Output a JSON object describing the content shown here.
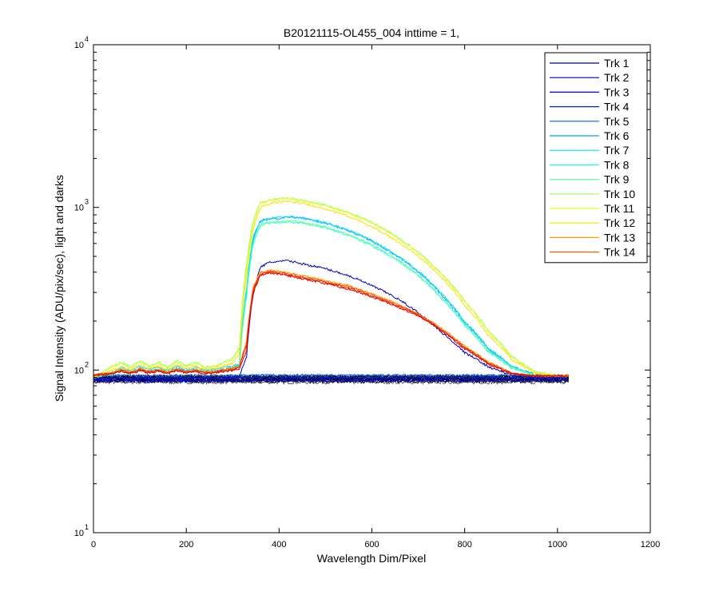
{
  "chart_data": {
    "type": "line",
    "title": "B20121115-OL455_004 inttime = 1,",
    "xlabel": "Wavelength Dim/Pixel",
    "ylabel": "Signal Intensity (ADU/pix/sec), light and darks",
    "xlim": [
      0,
      1200
    ],
    "ylim": [
      10,
      10000
    ],
    "yscale": "log",
    "grid": false,
    "legend_position": "top-right",
    "x_ticks": [
      0,
      200,
      400,
      600,
      800,
      1000,
      1200
    ],
    "x_tick_labels": [
      "0",
      "200",
      "400",
      "600",
      "800",
      "1000",
      "1200"
    ],
    "y_ticks": [
      {
        "value": 10,
        "base": "10",
        "exp": "1"
      },
      {
        "value": 100,
        "base": "10",
        "exp": "2"
      },
      {
        "value": 1000,
        "base": "10",
        "exp": "3"
      },
      {
        "value": 10000,
        "base": "10",
        "exp": "4"
      }
    ],
    "x": [
      0,
      40,
      60,
      80,
      100,
      120,
      140,
      160,
      180,
      200,
      220,
      240,
      260,
      280,
      300,
      315,
      330,
      345,
      360,
      380,
      400,
      420,
      450,
      500,
      550,
      600,
      650,
      700,
      750,
      800,
      850,
      900,
      950,
      1000,
      1025
    ],
    "series": [
      {
        "name": "Trk 1",
        "color": "#00008f",
        "values": [
          88,
          86,
          86,
          87,
          86,
          87,
          86,
          87,
          86,
          86,
          86,
          87,
          86,
          86,
          86,
          86,
          87,
          88,
          88,
          88,
          88,
          88,
          88,
          88,
          88,
          88,
          88,
          88,
          88,
          88,
          88,
          88,
          88,
          88,
          88
        ]
      },
      {
        "name": "Trk 2",
        "color": "#0000bf",
        "values": [
          88,
          88,
          89,
          88,
          89,
          88,
          89,
          88,
          89,
          88,
          89,
          88,
          88,
          89,
          90,
          92,
          120,
          300,
          430,
          460,
          465,
          470,
          450,
          420,
          380,
          330,
          280,
          225,
          170,
          128,
          105,
          93,
          90,
          90,
          90
        ]
      },
      {
        "name": "Trk 3",
        "color": "#0000ef",
        "values": [
          86,
          85,
          86,
          85,
          86,
          85,
          86,
          85,
          86,
          85,
          86,
          85,
          86,
          85,
          86,
          86,
          86,
          86,
          86,
          86,
          86,
          86,
          86,
          86,
          86,
          86,
          86,
          86,
          86,
          86,
          86,
          86,
          86,
          86,
          86
        ]
      },
      {
        "name": "Trk 4",
        "color": "#0020ff",
        "values": [
          89,
          89,
          90,
          89,
          90,
          89,
          90,
          89,
          90,
          89,
          90,
          89,
          90,
          89,
          90,
          90,
          90,
          90,
          90,
          90,
          90,
          90,
          90,
          90,
          90,
          90,
          90,
          90,
          90,
          90,
          90,
          90,
          90,
          90,
          90
        ]
      },
      {
        "name": "Trk 5",
        "color": "#0060ff",
        "values": [
          92,
          92,
          93,
          92,
          93,
          92,
          93,
          92,
          93,
          92,
          93,
          92,
          93,
          92,
          93,
          93,
          93,
          93,
          93,
          93,
          93,
          93,
          93,
          93,
          93,
          93,
          93,
          93,
          93,
          93,
          93,
          93,
          93,
          93,
          93
        ]
      },
      {
        "name": "Trk 6",
        "color": "#00a0ff",
        "values": [
          91,
          95,
          101,
          98,
          102,
          99,
          101,
          98,
          102,
          99,
          101,
          98,
          99,
          101,
          104,
          108,
          300,
          650,
          820,
          850,
          860,
          870,
          860,
          800,
          720,
          620,
          510,
          400,
          290,
          195,
          135,
          105,
          94,
          92,
          92
        ]
      },
      {
        "name": "Trk 7",
        "color": "#00dfff",
        "values": [
          90,
          96,
          104,
          100,
          105,
          101,
          104,
          100,
          105,
          101,
          104,
          100,
          101,
          104,
          106,
          110,
          320,
          680,
          830,
          860,
          870,
          880,
          865,
          805,
          725,
          625,
          515,
          405,
          295,
          198,
          137,
          106,
          94,
          92,
          92
        ]
      },
      {
        "name": "Trk 8",
        "color": "#20ffdf",
        "values": [
          91,
          94,
          99,
          96,
          100,
          97,
          99,
          96,
          100,
          97,
          99,
          96,
          97,
          99,
          101,
          105,
          280,
          600,
          780,
          800,
          810,
          815,
          800,
          750,
          670,
          580,
          480,
          380,
          275,
          188,
          130,
          103,
          93,
          92,
          92
        ]
      },
      {
        "name": "Trk 9",
        "color": "#60ff9f",
        "values": [
          91,
          95,
          100,
          97,
          101,
          98,
          100,
          97,
          101,
          98,
          100,
          97,
          98,
          100,
          102,
          106,
          290,
          620,
          790,
          810,
          820,
          825,
          810,
          760,
          680,
          590,
          490,
          385,
          280,
          190,
          132,
          104,
          93,
          92,
          92
        ]
      },
      {
        "name": "Trk 10",
        "color": "#9fff60",
        "values": [
          90,
          105,
          112,
          104,
          114,
          106,
          112,
          104,
          114,
          106,
          112,
          104,
          106,
          112,
          118,
          140,
          450,
          850,
          1080,
          1110,
          1130,
          1140,
          1110,
          1030,
          930,
          810,
          670,
          530,
          390,
          265,
          175,
          122,
          98,
          92,
          92
        ]
      },
      {
        "name": "Trk 11",
        "color": "#dfff20",
        "values": [
          90,
          104,
          110,
          103,
          112,
          105,
          110,
          103,
          112,
          105,
          110,
          103,
          105,
          110,
          115,
          135,
          420,
          800,
          1060,
          1100,
          1120,
          1130,
          1100,
          1020,
          920,
          800,
          660,
          520,
          385,
          262,
          172,
          120,
          97,
          92,
          92
        ]
      },
      {
        "name": "Trk 12",
        "color": "#ffdf00",
        "values": [
          90,
          100,
          105,
          100,
          108,
          102,
          106,
          100,
          108,
          102,
          106,
          100,
          102,
          106,
          110,
          125,
          380,
          750,
          1000,
          1050,
          1080,
          1090,
          1060,
          980,
          880,
          760,
          630,
          500,
          370,
          250,
          165,
          117,
          96,
          92,
          92
        ]
      },
      {
        "name": "Trk 13",
        "color": "#ff9f00",
        "values": [
          92,
          97,
          101,
          97,
          102,
          98,
          101,
          97,
          102,
          98,
          101,
          97,
          98,
          101,
          103,
          106,
          150,
          330,
          400,
          410,
          405,
          395,
          380,
          355,
          330,
          295,
          258,
          222,
          180,
          140,
          112,
          96,
          92,
          92,
          92
        ]
      },
      {
        "name": "Trk 14",
        "color": "#ff6000",
        "values": [
          92,
          96,
          100,
          96,
          101,
          97,
          100,
          96,
          101,
          97,
          100,
          96,
          97,
          100,
          102,
          105,
          145,
          320,
          395,
          405,
          400,
          390,
          375,
          350,
          325,
          290,
          255,
          220,
          178,
          138,
          111,
          96,
          92,
          92,
          92
        ]
      },
      {
        "name": "",
        "color": "#ff2000",
        "values": [
          93,
          96,
          99,
          96,
          100,
          97,
          99,
          96,
          100,
          97,
          99,
          96,
          97,
          99,
          100,
          104,
          140,
          310,
          390,
          400,
          395,
          385,
          370,
          345,
          320,
          286,
          252,
          218,
          176,
          137,
          110,
          95,
          92,
          92,
          92
        ]
      },
      {
        "name": "",
        "color": "#df0000",
        "values": [
          93,
          95,
          98,
          95,
          99,
          96,
          98,
          95,
          99,
          96,
          98,
          95,
          96,
          98,
          99,
          102,
          130,
          300,
          385,
          395,
          390,
          380,
          365,
          340,
          315,
          282,
          248,
          215,
          174,
          135,
          109,
          95,
          92,
          92,
          92
        ]
      }
    ],
    "dark_traces": {
      "color": "#000000",
      "x_start": 0,
      "x_end": 1025,
      "levels": [
        84,
        85,
        86,
        86.5,
        87,
        87.5,
        88,
        88.5,
        89,
        89.5,
        90,
        90.5,
        91,
        91.5,
        92
      ]
    }
  }
}
